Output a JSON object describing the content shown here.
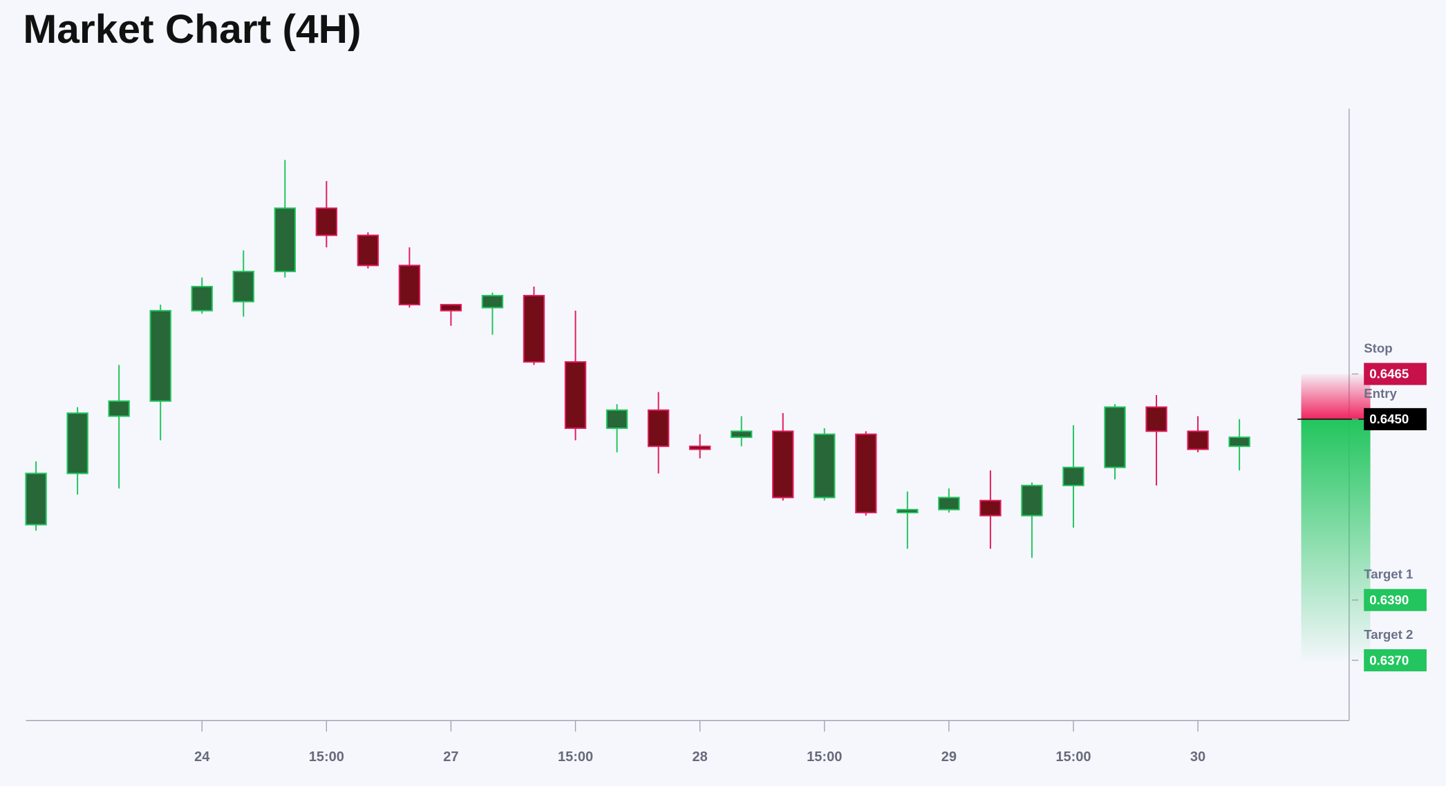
{
  "chart_data": {
    "type": "candlestick",
    "title": "Market Chart (4H)",
    "categories": [
      null,
      null,
      null,
      null,
      "24",
      null,
      null,
      "15:00",
      null,
      null,
      "27",
      null,
      null,
      "15:00",
      null,
      null,
      "28",
      null,
      null,
      "15:00",
      null,
      null,
      "29",
      null,
      null,
      "15:00",
      null,
      null,
      "30",
      null
    ],
    "open": [
      0.6415,
      0.6432,
      0.6451,
      0.6456,
      0.6486,
      0.6489,
      0.6499,
      0.652,
      0.6511,
      0.6501,
      0.6488,
      0.6487,
      0.6491,
      0.6469,
      0.6447,
      0.6453,
      0.6441,
      0.6444,
      0.6446,
      0.6424,
      0.6445,
      0.6419,
      0.642,
      0.6423,
      0.6418,
      0.6428,
      0.6434,
      0.6454,
      0.6446,
      0.6441
    ],
    "high": [
      0.6436,
      0.6454,
      0.6468,
      0.6488,
      0.6497,
      0.6506,
      0.6536,
      0.6529,
      0.6512,
      0.6507,
      0.6488,
      0.6492,
      0.6494,
      0.6486,
      0.6455,
      0.6459,
      0.6445,
      0.6451,
      0.6452,
      0.6447,
      0.6446,
      0.6426,
      0.6427,
      0.6433,
      0.6429,
      0.6448,
      0.6455,
      0.6458,
      0.6451,
      0.645
    ],
    "low": [
      0.6413,
      0.6425,
      0.6427,
      0.6443,
      0.6485,
      0.6484,
      0.6497,
      0.6507,
      0.65,
      0.6487,
      0.6481,
      0.6478,
      0.6468,
      0.6443,
      0.6439,
      0.6432,
      0.6437,
      0.6441,
      0.6423,
      0.6423,
      0.6418,
      0.6407,
      0.6419,
      0.6407,
      0.6404,
      0.6414,
      0.643,
      0.6428,
      0.6439,
      0.6433
    ],
    "close": [
      0.6432,
      0.6452,
      0.6456,
      0.6486,
      0.6494,
      0.6499,
      0.652,
      0.6511,
      0.6501,
      0.6488,
      0.6486,
      0.6491,
      0.6469,
      0.6447,
      0.6453,
      0.6441,
      0.644,
      0.6446,
      0.6424,
      0.6445,
      0.6419,
      0.642,
      0.6424,
      0.6418,
      0.6428,
      0.6434,
      0.6454,
      0.6446,
      0.644,
      0.6444
    ],
    "up_color": "#22c55e",
    "up_fill": "#276738",
    "down_color": "#e11d5a",
    "down_fill": "#730d18",
    "ylim": [
      0.635,
      0.6553
    ],
    "levels": [
      {
        "name": "Stop",
        "value": 0.6465,
        "value_label": "0.6465",
        "color": "#c8104a"
      },
      {
        "name": "Entry",
        "value": 0.645,
        "value_label": "0.6450",
        "color": "#000000"
      },
      {
        "name": "Target 1",
        "value": 0.639,
        "value_label": "0.6390",
        "color": "#22c55e"
      },
      {
        "name": "Target 2",
        "value": 0.637,
        "value_label": "0.6370",
        "color": "#22c55e"
      }
    ]
  }
}
